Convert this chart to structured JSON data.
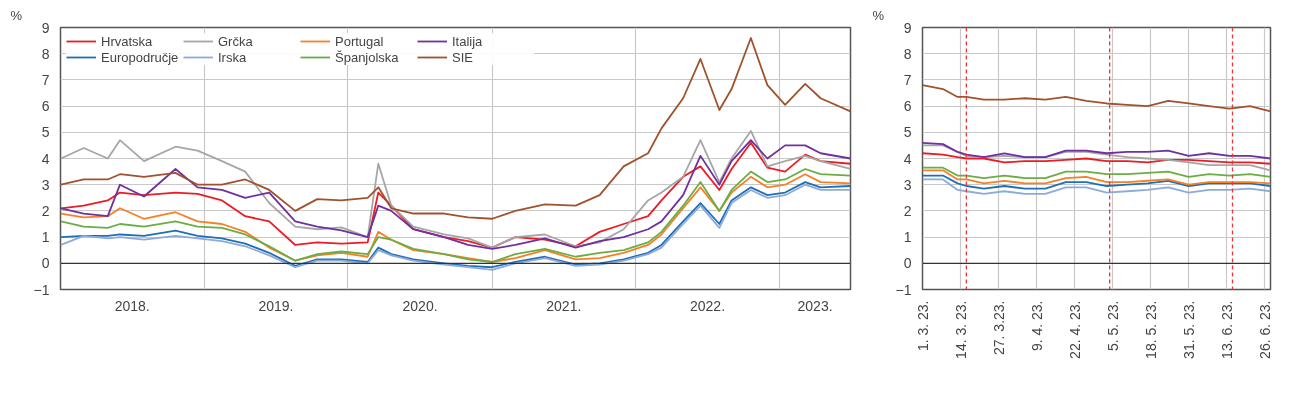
{
  "chart_data": [
    {
      "type": "line",
      "ylabel": "%",
      "legend": "top left",
      "grid": true,
      "line_style": "solid",
      "xlim": [
        "2018-01-01",
        "2023-06-30"
      ],
      "ylim": [
        -1,
        9
      ],
      "yticks": [
        -1,
        0,
        1,
        2,
        3,
        4,
        5,
        6,
        7,
        8,
        9
      ],
      "xticks": [
        {
          "value": "2018-01-01",
          "label": null
        },
        {
          "value": "2018-07-02",
          "label": "2018."
        },
        {
          "value": "2019-01-01",
          "label": null
        },
        {
          "value": "2019-07-02",
          "label": "2019."
        },
        {
          "value": "2020-01-01",
          "label": null
        },
        {
          "value": "2020-07-02",
          "label": "2020."
        },
        {
          "value": "2021-01-01",
          "label": null
        },
        {
          "value": "2021-07-02",
          "label": "2021."
        },
        {
          "value": "2022-01-01",
          "label": null
        },
        {
          "value": "2022-07-02",
          "label": "2022."
        },
        {
          "value": "2023-01-01",
          "label": null
        },
        {
          "value": "2023-04-01",
          "label": "2023."
        }
      ],
      "ref_lines": [
        {
          "axis": "y",
          "value": 0,
          "color": "#333333",
          "line_style": "solid"
        }
      ],
      "x": [
        "2018-01-02",
        "2018-03-01",
        "2018-05-01",
        "2018-06-01",
        "2018-08-01",
        "2018-10-20",
        "2018-12-15",
        "2019-02-15",
        "2019-04-15",
        "2019-06-15",
        "2019-08-20",
        "2019-10-15",
        "2019-12-15",
        "2020-02-20",
        "2020-03-18",
        "2020-04-20",
        "2020-06-15",
        "2020-09-01",
        "2020-11-01",
        "2021-01-01",
        "2021-03-01",
        "2021-05-15",
        "2021-08-01",
        "2021-10-01",
        "2021-12-01",
        "2022-02-01",
        "2022-03-07",
        "2022-05-01",
        "2022-06-14",
        "2022-08-01",
        "2022-09-01",
        "2022-10-20",
        "2022-12-01",
        "2023-01-15",
        "2023-03-07",
        "2023-04-15",
        "2023-06-30"
      ],
      "series": [
        {
          "name": "Hrvatska",
          "color": "#ed1c24",
          "values": [
            2.1,
            2.2,
            2.4,
            2.7,
            2.6,
            2.7,
            2.65,
            2.4,
            1.8,
            1.6,
            0.7,
            0.8,
            0.75,
            0.8,
            2.7,
            2.2,
            1.3,
            1.0,
            0.85,
            0.6,
            1.0,
            0.9,
            0.65,
            1.2,
            1.5,
            1.8,
            2.4,
            3.3,
            3.7,
            2.8,
            3.6,
            4.6,
            3.65,
            3.5,
            4.15,
            3.9,
            3.8
          ]
        },
        {
          "name": "Europodručje",
          "color": "#1f6fb8",
          "values": [
            1.0,
            1.05,
            1.05,
            1.1,
            1.05,
            1.25,
            1.05,
            0.95,
            0.75,
            0.4,
            -0.1,
            0.15,
            0.15,
            0.05,
            0.6,
            0.35,
            0.15,
            0.0,
            -0.1,
            -0.15,
            0.05,
            0.25,
            -0.05,
            0.0,
            0.15,
            0.4,
            0.7,
            1.6,
            2.3,
            1.5,
            2.4,
            2.9,
            2.6,
            2.7,
            3.1,
            2.9,
            2.95
          ]
        },
        {
          "name": "Grčka",
          "color": "#a6a6a6",
          "values": [
            4.0,
            4.4,
            4.0,
            4.7,
            3.9,
            4.45,
            4.3,
            3.9,
            3.5,
            2.3,
            1.4,
            1.3,
            1.37,
            1.0,
            3.8,
            2.2,
            1.4,
            1.1,
            0.95,
            0.6,
            1.0,
            1.1,
            0.65,
            0.8,
            1.3,
            2.4,
            2.7,
            3.3,
            4.7,
            3.1,
            4.0,
            5.05,
            3.7,
            3.9,
            4.1,
            3.9,
            3.6
          ]
        },
        {
          "name": "Irska",
          "color": "#8eaadb",
          "values": [
            0.7,
            1.05,
            0.95,
            1.0,
            0.9,
            1.05,
            0.95,
            0.85,
            0.65,
            0.3,
            -0.15,
            0.1,
            0.1,
            0.0,
            0.5,
            0.3,
            0.1,
            -0.05,
            -0.15,
            -0.25,
            0.0,
            0.2,
            -0.1,
            -0.05,
            0.1,
            0.35,
            0.6,
            1.5,
            2.2,
            1.35,
            2.3,
            2.8,
            2.5,
            2.6,
            3.0,
            2.8,
            2.8
          ]
        },
        {
          "name": "Portugal",
          "color": "#f58025",
          "values": [
            1.9,
            1.75,
            1.8,
            2.1,
            1.7,
            1.95,
            1.6,
            1.5,
            1.2,
            0.6,
            0.1,
            0.3,
            0.4,
            0.25,
            1.2,
            0.9,
            0.5,
            0.35,
            0.2,
            0.05,
            0.2,
            0.5,
            0.15,
            0.2,
            0.4,
            0.7,
            1.1,
            2.1,
            2.9,
            2.0,
            2.7,
            3.3,
            2.9,
            3.0,
            3.4,
            3.1,
            3.05
          ]
        },
        {
          "name": "Španjolska",
          "color": "#6aad45",
          "values": [
            1.6,
            1.4,
            1.35,
            1.5,
            1.4,
            1.6,
            1.4,
            1.35,
            1.1,
            0.65,
            0.1,
            0.35,
            0.45,
            0.35,
            1.0,
            0.9,
            0.55,
            0.35,
            0.15,
            0.05,
            0.35,
            0.55,
            0.25,
            0.4,
            0.5,
            0.8,
            1.2,
            2.2,
            3.1,
            2.0,
            2.8,
            3.5,
            3.1,
            3.2,
            3.6,
            3.4,
            3.35
          ]
        },
        {
          "name": "Italija",
          "color": "#7030a0",
          "values": [
            2.1,
            1.9,
            1.8,
            3.0,
            2.55,
            3.6,
            2.9,
            2.8,
            2.5,
            2.7,
            1.6,
            1.4,
            1.26,
            1.0,
            2.2,
            2.0,
            1.3,
            1.0,
            0.7,
            0.55,
            0.7,
            0.95,
            0.6,
            0.85,
            1.0,
            1.3,
            1.6,
            2.6,
            4.1,
            3.0,
            3.9,
            4.7,
            4.0,
            4.5,
            4.5,
            4.2,
            4.0
          ]
        },
        {
          "name": "SIE",
          "color": "#a0522d",
          "values": [
            3.0,
            3.2,
            3.2,
            3.4,
            3.3,
            3.45,
            3.0,
            3.0,
            3.2,
            2.8,
            2.0,
            2.45,
            2.4,
            2.5,
            2.9,
            2.1,
            1.9,
            1.9,
            1.75,
            1.7,
            2.0,
            2.25,
            2.2,
            2.6,
            3.7,
            4.2,
            5.15,
            6.3,
            7.8,
            5.85,
            6.65,
            8.6,
            6.8,
            6.05,
            6.85,
            6.3,
            5.8
          ]
        }
      ]
    },
    {
      "type": "line",
      "ylabel": "%",
      "grid": true,
      "line_style": "solid",
      "xlim": [
        "2023-03-01",
        "2023-06-28"
      ],
      "ylim": [
        -1,
        9
      ],
      "yticks": [
        -1,
        0,
        1,
        2,
        3,
        4,
        5,
        6,
        7,
        8,
        9
      ],
      "xticks": [
        {
          "value": "2023-03-01",
          "label": "1. 3. 23."
        },
        {
          "value": "2023-03-14",
          "label": "14. 3. 23."
        },
        {
          "value": "2023-03-27",
          "label": "27. 3.23."
        },
        {
          "value": "2023-04-09",
          "label": "9. 4. 23."
        },
        {
          "value": "2023-04-22",
          "label": "22. 4. 23."
        },
        {
          "value": "2023-05-05",
          "label": "5. 5. 23."
        },
        {
          "value": "2023-05-18",
          "label": "18. 5. 23."
        },
        {
          "value": "2023-05-31",
          "label": "31. 5. 23."
        },
        {
          "value": "2023-06-13",
          "label": "13. 6. 23."
        },
        {
          "value": "2023-06-26",
          "label": "26. 6. 23."
        }
      ],
      "ref_lines": [
        {
          "axis": "y",
          "value": 0,
          "color": "#333333",
          "line_style": "solid"
        },
        {
          "axis": "x",
          "value": "2023-03-16",
          "color": "#e8383d",
          "line_style": "dashed"
        },
        {
          "axis": "x",
          "value": "2023-05-04",
          "color": "#e8383d",
          "line_style": "dashed"
        },
        {
          "axis": "x",
          "value": "2023-06-15",
          "color": "#e8383d",
          "line_style": "dashed"
        }
      ],
      "x": [
        "2023-03-01",
        "2023-03-08",
        "2023-03-13",
        "2023-03-16",
        "2023-03-22",
        "2023-03-29",
        "2023-04-05",
        "2023-04-12",
        "2023-04-19",
        "2023-04-26",
        "2023-05-03",
        "2023-05-10",
        "2023-05-17",
        "2023-05-24",
        "2023-05-31",
        "2023-06-07",
        "2023-06-14",
        "2023-06-21",
        "2023-06-28"
      ],
      "series": [
        {
          "color": "#ed1c24",
          "values": [
            4.2,
            4.15,
            4.05,
            4.0,
            4.0,
            3.85,
            3.9,
            3.9,
            3.95,
            4.0,
            3.9,
            3.9,
            3.85,
            3.95,
            3.95,
            3.9,
            3.85,
            3.85,
            3.8
          ]
        },
        {
          "color": "#1f6fb8",
          "values": [
            3.35,
            3.35,
            3.05,
            2.95,
            2.85,
            2.95,
            2.85,
            2.85,
            3.1,
            3.1,
            2.95,
            3.0,
            3.05,
            3.15,
            2.95,
            3.05,
            3.05,
            3.05,
            2.95
          ]
        },
        {
          "color": "#a6a6a6",
          "values": [
            4.5,
            4.5,
            4.25,
            4.1,
            4.05,
            4.1,
            4.05,
            4.05,
            4.25,
            4.25,
            4.15,
            4.05,
            4.0,
            3.95,
            3.85,
            3.75,
            3.75,
            3.75,
            3.55
          ]
        },
        {
          "color": "#8eaadb",
          "values": [
            3.2,
            3.2,
            2.8,
            2.75,
            2.65,
            2.75,
            2.65,
            2.65,
            2.9,
            2.9,
            2.7,
            2.75,
            2.8,
            2.9,
            2.7,
            2.8,
            2.8,
            2.85,
            2.75
          ]
        },
        {
          "color": "#f58025",
          "values": [
            3.55,
            3.55,
            3.2,
            3.2,
            3.05,
            3.15,
            3.05,
            3.05,
            3.25,
            3.3,
            3.1,
            3.1,
            3.15,
            3.2,
            3.0,
            3.1,
            3.1,
            3.1,
            3.05
          ]
        },
        {
          "color": "#6aad45",
          "values": [
            3.65,
            3.65,
            3.35,
            3.35,
            3.25,
            3.35,
            3.25,
            3.25,
            3.5,
            3.5,
            3.4,
            3.4,
            3.45,
            3.5,
            3.3,
            3.4,
            3.35,
            3.4,
            3.3
          ]
        },
        {
          "color": "#7030a0",
          "values": [
            4.6,
            4.55,
            4.25,
            4.15,
            4.05,
            4.2,
            4.05,
            4.05,
            4.3,
            4.3,
            4.2,
            4.25,
            4.25,
            4.3,
            4.1,
            4.2,
            4.1,
            4.1,
            4.0
          ]
        },
        {
          "color": "#a0522d",
          "values": [
            6.8,
            6.65,
            6.35,
            6.35,
            6.25,
            6.25,
            6.3,
            6.25,
            6.35,
            6.2,
            6.1,
            6.05,
            6.0,
            6.2,
            6.1,
            6.0,
            5.9,
            6.0,
            5.8
          ]
        }
      ]
    }
  ]
}
